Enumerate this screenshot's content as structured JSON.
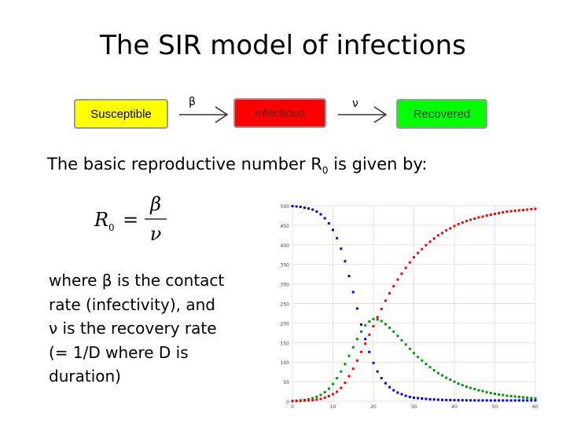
{
  "slide": {
    "title": "The SIR model of infections",
    "intro_text": "The basic reproductive number R",
    "intro_sub": "0",
    "intro_suffix": " is given by:",
    "description_lines": [
      "where β is the contact",
      "rate (infectivity), and",
      "ν is the recovery rate",
      "(= 1/D where D is",
      "duration)"
    ]
  },
  "diagram": {
    "boxes": [
      {
        "label": "Susceptible",
        "color": "#ffff00"
      },
      {
        "label": "Infectious",
        "color": "#ff0000"
      },
      {
        "label": "Recovered",
        "color": "#00ff00"
      }
    ],
    "transitions": [
      "β",
      "ν"
    ]
  },
  "formula": {
    "lhs": "R",
    "lhs_sub": "0",
    "numerator": "β",
    "denominator": "ν"
  },
  "chart_data": {
    "type": "scatter",
    "xlim": [
      0,
      60
    ],
    "ylim": [
      0,
      500
    ],
    "xticks": [
      0,
      10,
      20,
      30,
      40,
      50,
      60
    ],
    "yticks": [
      0,
      50,
      100,
      150,
      200,
      250,
      300,
      350,
      400,
      450,
      500
    ],
    "grid": true,
    "x": [
      0,
      1,
      2,
      3,
      4,
      5,
      6,
      7,
      8,
      9,
      10,
      11,
      12,
      13,
      14,
      15,
      16,
      17,
      18,
      19,
      20,
      21,
      22,
      23,
      24,
      25,
      26,
      27,
      28,
      29,
      30,
      31,
      32,
      33,
      34,
      35,
      36,
      37,
      38,
      39,
      40,
      41,
      42,
      43,
      44,
      45,
      46,
      47,
      48,
      49,
      50,
      51,
      52,
      53,
      54,
      55,
      56,
      57,
      58,
      59,
      60
    ],
    "series": [
      {
        "color": "#0000ff",
        "values": [
          499,
          498,
          497,
          495,
          493,
          490,
          485,
          478,
          468,
          455,
          438,
          417,
          390,
          358,
          320,
          279,
          237,
          196,
          159,
          126,
          98,
          76,
          59,
          46,
          36,
          28,
          22,
          18,
          14,
          11,
          9,
          8,
          7,
          6,
          5,
          4.5,
          4,
          3.5,
          3.2,
          3,
          2.8,
          2.6,
          2.5,
          2.4,
          2.3,
          2.2,
          2.1,
          2,
          2,
          2,
          2,
          2,
          2,
          2,
          2,
          2,
          2,
          2,
          2,
          2,
          2
        ]
      },
      {
        "color": "#009900",
        "values": [
          1,
          1.5,
          2.3,
          3.5,
          5,
          7.5,
          11,
          16,
          23,
          32,
          44,
          59,
          76,
          95,
          116,
          138,
          159,
          178,
          194,
          204,
          210,
          209,
          205,
          197,
          188,
          178,
          167,
          156,
          145,
          134,
          123,
          113,
          104,
          95,
          87,
          79,
          72,
          66,
          60,
          55,
          50,
          45,
          41,
          37,
          34,
          31,
          28,
          26,
          23,
          21,
          19,
          17,
          16,
          14,
          13,
          12,
          11,
          10,
          9,
          8,
          7
        ]
      },
      {
        "color": "#ff0000",
        "values": [
          0,
          0.5,
          0.7,
          1.5,
          2,
          2.5,
          4,
          6,
          9,
          13,
          18,
          24,
          34,
          47,
          64,
          83,
          104,
          126,
          147,
          170,
          192,
          215,
          236,
          257,
          276,
          294,
          311,
          326,
          341,
          355,
          368,
          379,
          389,
          399,
          408,
          416,
          424,
          430,
          437,
          442,
          448,
          453,
          457,
          461,
          464,
          467,
          470,
          472,
          475,
          477,
          479,
          481,
          483,
          485,
          486,
          487,
          488,
          489,
          490,
          491,
          492
        ]
      }
    ]
  }
}
